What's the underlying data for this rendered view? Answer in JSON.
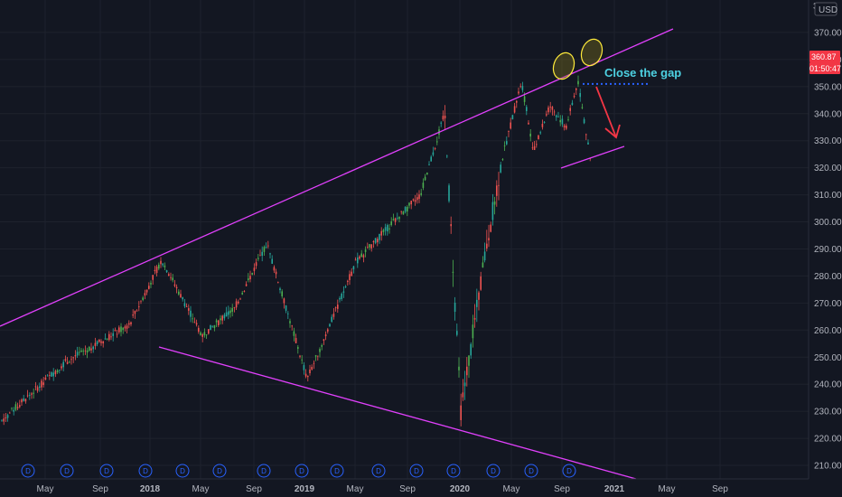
{
  "chart_data": {
    "type": "candlestick",
    "currency": "USD",
    "axis_top_label": "3",
    "x_labels": [
      "May",
      "Sep",
      "2018",
      "May",
      "Sep",
      "2019",
      "May",
      "Sep",
      "2020",
      "May",
      "Sep",
      "2021",
      "May",
      "Sep"
    ],
    "y_ticks": [
      210,
      220,
      230,
      240,
      250,
      260,
      270,
      280,
      290,
      300,
      310,
      320,
      330,
      340,
      350,
      360,
      370
    ],
    "ylim": [
      205,
      382
    ],
    "last_price": "360.87",
    "countdown": "01:50:47",
    "annotation": "Close the gap",
    "dividend_marker": "D",
    "dividend_count": 15,
    "trend": {
      "x": [
        0,
        0.08,
        0.16,
        0.2,
        0.25,
        0.29,
        0.33,
        0.38,
        0.44,
        0.48,
        0.52,
        0.55,
        0.57,
        0.6,
        0.62,
        0.645,
        0.66,
        0.68,
        0.7,
        0.715,
        0.73
      ],
      "y": [
        226,
        248,
        262,
        286,
        258,
        268,
        292,
        242,
        285,
        298,
        310,
        340,
        230,
        288,
        322,
        352,
        326,
        343,
        335,
        352,
        323
      ]
    },
    "trendlines": {
      "upper": {
        "from": [
          "start",
          260
        ],
        "to": [
          "Jan 2021",
          371
        ]
      },
      "lower": {
        "from": [
          "Jan 2018",
          253
        ],
        "to": [
          "Jan 2021",
          205
        ]
      },
      "channel_low": {
        "from": [
          "Sep 2020",
          320
        ],
        "to": [
          "Dec 2020",
          328
        ]
      }
    },
    "gap_level": 351,
    "colors": {
      "background": "#131722",
      "up": "#26a69a",
      "up_bright": "#4caf50",
      "down": "#ef5350",
      "trendline": "#e040fb",
      "annotation": "#4dd0e1",
      "gap_line": "#2962ff",
      "arrow": "#f23645",
      "ellipse": "#ffeb3b",
      "price_badge": "#f23645"
    }
  }
}
